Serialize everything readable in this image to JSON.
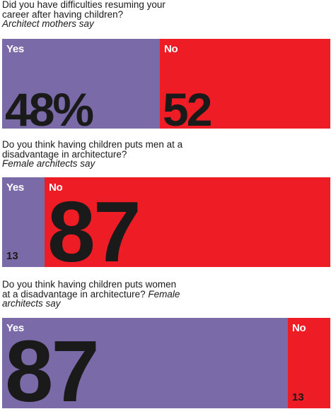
{
  "chart_data": [
    {
      "type": "bar",
      "stacked": true,
      "orientation": "horizontal",
      "question": "Did you have difficulties resuming your career after having children?",
      "attribution": "Architect mothers say",
      "segments": [
        {
          "label": "Yes",
          "value": 48,
          "display": "48%",
          "color": "#7b6aa8"
        },
        {
          "label": "No",
          "value": 52,
          "display": "52",
          "color": "#ee1c25"
        }
      ]
    },
    {
      "type": "bar",
      "stacked": true,
      "orientation": "horizontal",
      "question": "Do you think having children puts men at a disadvantage in architecture?",
      "attribution": "Female architects say",
      "segments": [
        {
          "label": "Yes",
          "value": 13,
          "display": "13",
          "color": "#7b6aa8"
        },
        {
          "label": "No",
          "value": 87,
          "display": "87",
          "color": "#ee1c25"
        }
      ]
    },
    {
      "type": "bar",
      "stacked": true,
      "orientation": "horizontal",
      "question": "Do you think having children puts women at a disadvantage in architecture?",
      "attribution": "Female architects say",
      "segments": [
        {
          "label": "Yes",
          "value": 87,
          "display": "87",
          "color": "#7b6aa8"
        },
        {
          "label": "No",
          "value": 13,
          "display": "13",
          "color": "#ee1c25"
        }
      ]
    }
  ]
}
